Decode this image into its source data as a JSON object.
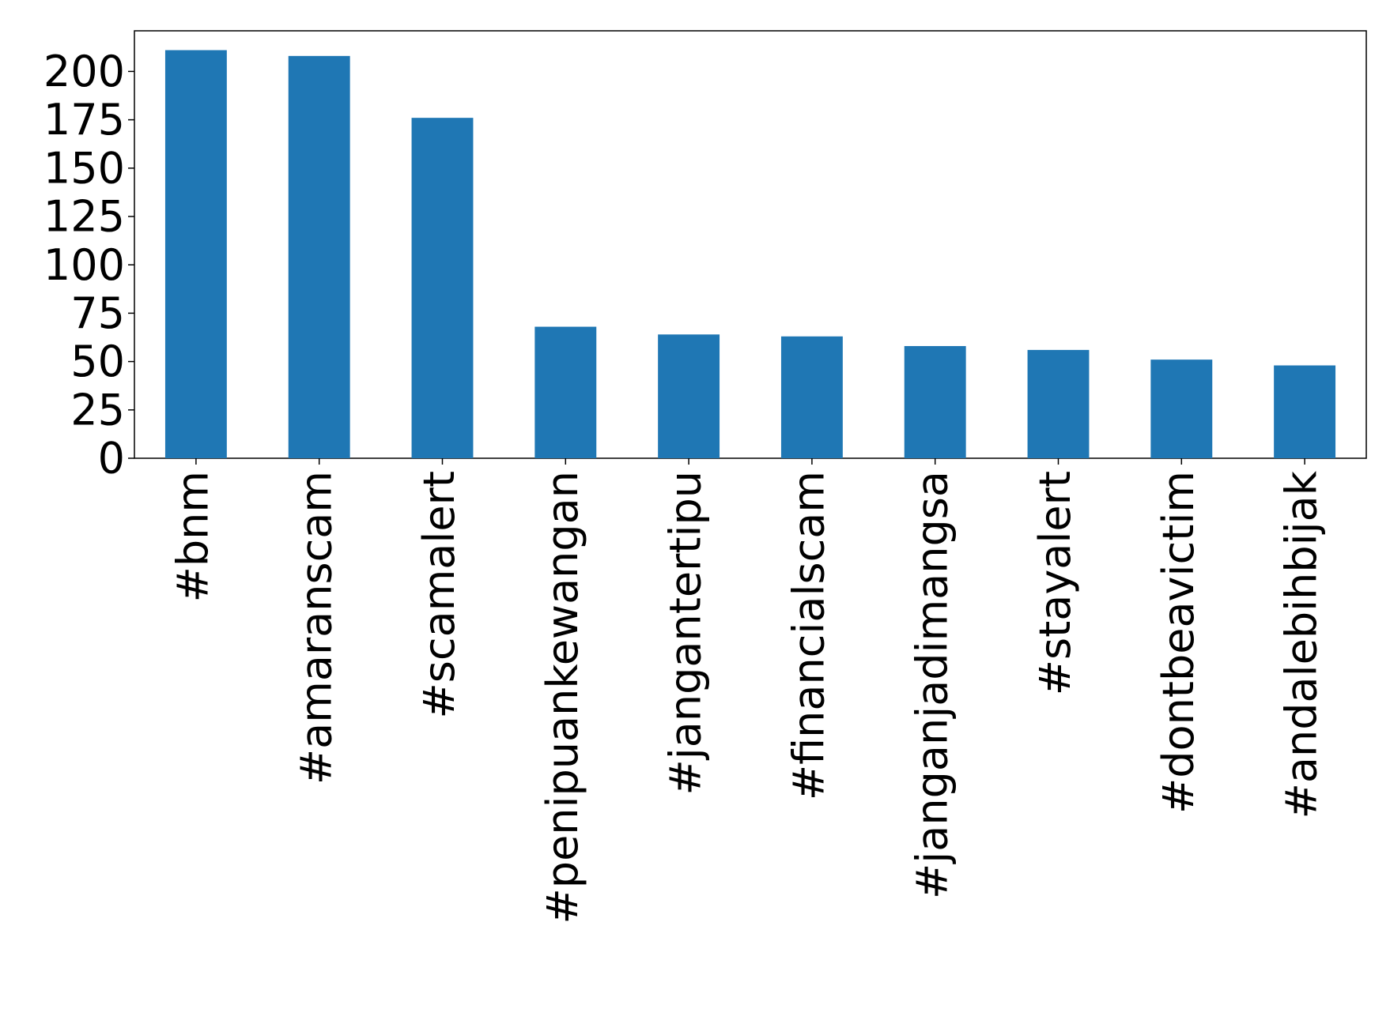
{
  "chart_data": {
    "type": "bar",
    "categories": [
      "#bnm",
      "#amaranscam",
      "#scamalert",
      "#penipuankewangan",
      "#jangantertipu",
      "#financialscam",
      "#janganjadimangsa",
      "#stayalert",
      "#dontbeavictim",
      "#andalebihbijak"
    ],
    "values": [
      211,
      208,
      176,
      68,
      64,
      63,
      58,
      56,
      51,
      48
    ],
    "color": "#1f77b4",
    "ylim": [
      0,
      221
    ],
    "yticks": [
      0,
      25,
      50,
      75,
      100,
      125,
      150,
      175,
      200
    ],
    "grid": false
  }
}
